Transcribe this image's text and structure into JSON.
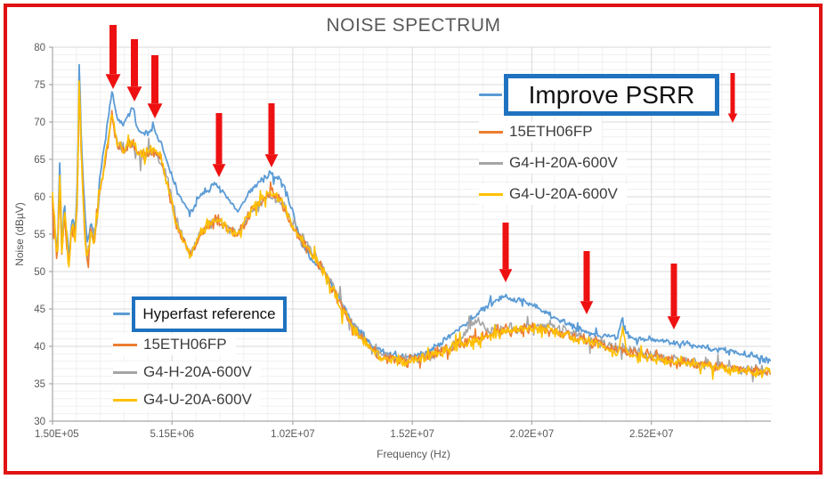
{
  "title": "NOISE SPECTRUM",
  "colors": {
    "frame_border": "#e01212",
    "callout_border": "#1f72c0",
    "arrow": "#ee1111",
    "title_text": "#595959",
    "axis_text": "#595959",
    "legend_text": "#3d3d3d",
    "grid_minor": "#f0f0f0",
    "grid_major": "#d9d9d9",
    "axis_line": "#a6a6a6"
  },
  "legend_top": {
    "callout_label": "Improve PSRR",
    "items": [
      "15ETH06FP",
      "G4-H-20A-600V",
      "G4-U-20A-600V"
    ]
  },
  "legend_bottom": {
    "callout_label": "Hyperfast reference",
    "items": [
      "15ETH06FP",
      "G4-H-20A-600V",
      "G4-U-20A-600V"
    ]
  },
  "annotations": {
    "arrow_color": "#ee1111",
    "arrows": [
      {
        "x": 127,
        "tail_y": 28,
        "tip_y": 100,
        "w": 8
      },
      {
        "x": 151,
        "tail_y": 44,
        "tip_y": 114,
        "w": 8
      },
      {
        "x": 174,
        "tail_y": 62,
        "tip_y": 133,
        "w": 8
      },
      {
        "x": 246,
        "tail_y": 127,
        "tip_y": 199,
        "w": 7
      },
      {
        "x": 305,
        "tail_y": 116,
        "tip_y": 188,
        "w": 7
      },
      {
        "x": 568,
        "tail_y": 250,
        "tip_y": 317,
        "w": 7
      },
      {
        "x": 659,
        "tail_y": 282,
        "tip_y": 353,
        "w": 7
      },
      {
        "x": 757,
        "tail_y": 296,
        "tip_y": 370,
        "w": 7
      },
      {
        "x": 823,
        "tail_y": 82,
        "tip_y": 138,
        "w": 5
      }
    ]
  },
  "chart_data": {
    "type": "line",
    "title": "NOISE SPECTRUM",
    "xlabel": "Frequency (Hz)",
    "ylabel": "Noise (dBµV)",
    "x_unit": "Hz",
    "xlim": [
      150000,
      30200000
    ],
    "ylim": [
      30,
      80
    ],
    "grid": "on",
    "yticks": [
      30,
      35,
      40,
      45,
      50,
      55,
      60,
      65,
      70,
      75,
      80
    ],
    "xticks": [
      {
        "hz": 150000,
        "label": "1.50E+05"
      },
      {
        "hz": 5150000,
        "label": "5.15E+06"
      },
      {
        "hz": 10200000,
        "label": "1.02E+07"
      },
      {
        "hz": 15200000,
        "label": "1.52E+07"
      },
      {
        "hz": 20200000,
        "label": "2.02E+07"
      },
      {
        "hz": 25200000,
        "label": "2.52E+07"
      }
    ],
    "series": [
      {
        "name": "Hyperfast reference",
        "alt_label": "Improve PSRR",
        "color": "#5b9bd5",
        "width": 1.8,
        "jitter": 0.5,
        "seed": 7,
        "points": [
          [
            150000,
            59
          ],
          [
            250000,
            56
          ],
          [
            350000,
            52
          ],
          [
            450000,
            64.5
          ],
          [
            550000,
            53
          ],
          [
            650000,
            59.5
          ],
          [
            750000,
            55
          ],
          [
            850000,
            52
          ],
          [
            950000,
            57.5
          ],
          [
            1100000,
            55
          ],
          [
            1200000,
            62
          ],
          [
            1260000,
            78
          ],
          [
            1350000,
            68
          ],
          [
            1450000,
            60
          ],
          [
            1600000,
            53.5
          ],
          [
            1750000,
            56.5
          ],
          [
            1900000,
            54
          ],
          [
            2100000,
            62
          ],
          [
            2350000,
            67.5
          ],
          [
            2630000,
            74
          ],
          [
            2850000,
            70.5
          ],
          [
            3100000,
            69.5
          ],
          [
            3500000,
            72
          ],
          [
            3750000,
            68.7
          ],
          [
            4100000,
            68.5
          ],
          [
            4370000,
            69.3
          ],
          [
            4700000,
            67
          ],
          [
            5000000,
            64
          ],
          [
            5400000,
            60.5
          ],
          [
            5900000,
            57.6
          ],
          [
            6400000,
            60.5
          ],
          [
            7000000,
            61.7
          ],
          [
            7500000,
            59.6
          ],
          [
            7900000,
            58
          ],
          [
            8400000,
            60.8
          ],
          [
            9200000,
            63
          ],
          [
            9700000,
            62.4
          ],
          [
            10100000,
            59
          ],
          [
            10600000,
            53.5
          ],
          [
            10900000,
            51.8
          ],
          [
            11500000,
            50
          ],
          [
            12200000,
            46
          ],
          [
            12700000,
            43.2
          ],
          [
            13500000,
            40
          ],
          [
            14200000,
            38.8
          ],
          [
            15000000,
            38.6
          ],
          [
            15700000,
            39
          ],
          [
            16400000,
            40.5
          ],
          [
            17200000,
            42.6
          ],
          [
            17800000,
            44
          ],
          [
            18300000,
            45.4
          ],
          [
            19000000,
            46.7
          ],
          [
            19800000,
            46.1
          ],
          [
            20500000,
            45
          ],
          [
            21300000,
            43.6
          ],
          [
            22300000,
            42.1
          ],
          [
            23100000,
            41.5
          ],
          [
            23800000,
            41.2
          ],
          [
            24000000,
            43.8
          ],
          [
            24200000,
            41.2
          ],
          [
            25200000,
            41
          ],
          [
            26100000,
            40.6
          ],
          [
            27200000,
            40
          ],
          [
            28300000,
            39.4
          ],
          [
            29400000,
            38.8
          ],
          [
            30200000,
            38
          ]
        ]
      },
      {
        "name": "G4-H-20A-600V",
        "color": "#a5a5a5",
        "width": 1.6,
        "jitter": 0.85,
        "seed": 29,
        "points": [
          [
            150000,
            60
          ],
          [
            250000,
            55
          ],
          [
            350000,
            51.5
          ],
          [
            450000,
            62.5
          ],
          [
            550000,
            52.5
          ],
          [
            650000,
            58
          ],
          [
            750000,
            54
          ],
          [
            850000,
            51
          ],
          [
            950000,
            56
          ],
          [
            1100000,
            54.5
          ],
          [
            1200000,
            60
          ],
          [
            1260000,
            75.5
          ],
          [
            1350000,
            66
          ],
          [
            1450000,
            58.5
          ],
          [
            1600000,
            51
          ],
          [
            1750000,
            55.5
          ],
          [
            1900000,
            54.5
          ],
          [
            2100000,
            60
          ],
          [
            2350000,
            64.5
          ],
          [
            2630000,
            71
          ],
          [
            2850000,
            67
          ],
          [
            3100000,
            66.5
          ],
          [
            3500000,
            67
          ],
          [
            3750000,
            65.5
          ],
          [
            4100000,
            65.8
          ],
          [
            4370000,
            66
          ],
          [
            4700000,
            65
          ],
          [
            5000000,
            61.5
          ],
          [
            5400000,
            56
          ],
          [
            5900000,
            52.5
          ],
          [
            6400000,
            55.5
          ],
          [
            7000000,
            57
          ],
          [
            7500000,
            55.8
          ],
          [
            7900000,
            55.2
          ],
          [
            8400000,
            57.8
          ],
          [
            9200000,
            60
          ],
          [
            9700000,
            59.4
          ],
          [
            10100000,
            56.8
          ],
          [
            10600000,
            54.5
          ],
          [
            11500000,
            50.5
          ],
          [
            12200000,
            46
          ],
          [
            12700000,
            43
          ],
          [
            13500000,
            39.6
          ],
          [
            14200000,
            38.4
          ],
          [
            15000000,
            38.3
          ],
          [
            15700000,
            38.6
          ],
          [
            16400000,
            39.4
          ],
          [
            17200000,
            40.6
          ],
          [
            17800000,
            43.6
          ],
          [
            18300000,
            42.3
          ],
          [
            19000000,
            42.3
          ],
          [
            19800000,
            42.4
          ],
          [
            20500000,
            42.8
          ],
          [
            21000000,
            43
          ],
          [
            21300000,
            42.4
          ],
          [
            22300000,
            41.2
          ],
          [
            23100000,
            40.4
          ],
          [
            24000000,
            39.8
          ],
          [
            25200000,
            38.8
          ],
          [
            26100000,
            38.2
          ],
          [
            27200000,
            37.7
          ],
          [
            28300000,
            37.2
          ],
          [
            29400000,
            36.9
          ],
          [
            30200000,
            36.6
          ]
        ]
      },
      {
        "name": "15ETH06FP",
        "color": "#ed7d31",
        "width": 1.6,
        "jitter": 0.85,
        "seed": 13,
        "points": [
          [
            150000,
            60
          ],
          [
            250000,
            55
          ],
          [
            350000,
            51
          ],
          [
            450000,
            63
          ],
          [
            550000,
            52
          ],
          [
            650000,
            58.5
          ],
          [
            750000,
            54
          ],
          [
            850000,
            50.5
          ],
          [
            950000,
            56.5
          ],
          [
            1100000,
            54
          ],
          [
            1200000,
            60
          ],
          [
            1260000,
            76
          ],
          [
            1350000,
            66
          ],
          [
            1450000,
            58
          ],
          [
            1600000,
            50
          ],
          [
            1750000,
            55.5
          ],
          [
            1900000,
            54.5
          ],
          [
            2100000,
            60
          ],
          [
            2350000,
            64.5
          ],
          [
            2630000,
            71
          ],
          [
            2850000,
            67
          ],
          [
            3100000,
            66.4
          ],
          [
            3500000,
            67.2
          ],
          [
            3750000,
            65.6
          ],
          [
            4100000,
            65.8
          ],
          [
            4370000,
            66.2
          ],
          [
            4700000,
            65
          ],
          [
            5000000,
            61
          ],
          [
            5400000,
            55.5
          ],
          [
            5900000,
            52.2
          ],
          [
            6400000,
            55.3
          ],
          [
            7000000,
            57.1
          ],
          [
            7500000,
            55.6
          ],
          [
            7900000,
            55
          ],
          [
            8400000,
            57.8
          ],
          [
            9200000,
            60.3
          ],
          [
            9700000,
            59.6
          ],
          [
            10100000,
            56.5
          ],
          [
            10600000,
            54
          ],
          [
            11500000,
            50
          ],
          [
            12200000,
            45.6
          ],
          [
            12700000,
            42.6
          ],
          [
            13500000,
            39.4
          ],
          [
            14200000,
            38.3
          ],
          [
            15000000,
            38.2
          ],
          [
            15700000,
            38.5
          ],
          [
            16400000,
            39.3
          ],
          [
            17200000,
            40.3
          ],
          [
            17800000,
            41
          ],
          [
            18300000,
            41.4
          ],
          [
            19000000,
            42
          ],
          [
            19800000,
            42.4
          ],
          [
            20500000,
            42.5
          ],
          [
            21300000,
            42
          ],
          [
            22300000,
            41
          ],
          [
            23100000,
            40.2
          ],
          [
            24000000,
            39.5
          ],
          [
            25200000,
            38.6
          ],
          [
            26100000,
            38.1
          ],
          [
            27200000,
            37.6
          ],
          [
            28300000,
            37.1
          ],
          [
            29400000,
            36.8
          ],
          [
            30200000,
            36.5
          ]
        ]
      },
      {
        "name": "G4-U-20A-600V",
        "color": "#ffc000",
        "width": 1.6,
        "jitter": 0.9,
        "seed": 41,
        "points": [
          [
            150000,
            60
          ],
          [
            250000,
            55
          ],
          [
            350000,
            51
          ],
          [
            450000,
            63.5
          ],
          [
            550000,
            52
          ],
          [
            650000,
            59
          ],
          [
            750000,
            54
          ],
          [
            850000,
            50.5
          ],
          [
            950000,
            56.5
          ],
          [
            1100000,
            54
          ],
          [
            1200000,
            61
          ],
          [
            1260000,
            76
          ],
          [
            1350000,
            66.5
          ],
          [
            1450000,
            58
          ],
          [
            1600000,
            51.5
          ],
          [
            1750000,
            55.5
          ],
          [
            1900000,
            54
          ],
          [
            2100000,
            60.5
          ],
          [
            2350000,
            65
          ],
          [
            2630000,
            71.5
          ],
          [
            2850000,
            67
          ],
          [
            3100000,
            66.5
          ],
          [
            3500000,
            67.3
          ],
          [
            3750000,
            65.7
          ],
          [
            4100000,
            66
          ],
          [
            4370000,
            66.3
          ],
          [
            4700000,
            65.2
          ],
          [
            5000000,
            61
          ],
          [
            5400000,
            55.5
          ],
          [
            5900000,
            52
          ],
          [
            6400000,
            55.5
          ],
          [
            7000000,
            57.2
          ],
          [
            7500000,
            55.7
          ],
          [
            7900000,
            55
          ],
          [
            8400000,
            58
          ],
          [
            9200000,
            60.5
          ],
          [
            9700000,
            59.8
          ],
          [
            10100000,
            56.5
          ],
          [
            10600000,
            54
          ],
          [
            11500000,
            50
          ],
          [
            12200000,
            45.5
          ],
          [
            12700000,
            42.5
          ],
          [
            13500000,
            39.3
          ],
          [
            14200000,
            38.2
          ],
          [
            15000000,
            38.1
          ],
          [
            15700000,
            38.4
          ],
          [
            16400000,
            39.2
          ],
          [
            17200000,
            40.2
          ],
          [
            17800000,
            40.9
          ],
          [
            18300000,
            41.3
          ],
          [
            19000000,
            41.9
          ],
          [
            19800000,
            42.3
          ],
          [
            20500000,
            42.4
          ],
          [
            21300000,
            41.9
          ],
          [
            22300000,
            40.9
          ],
          [
            23100000,
            40.1
          ],
          [
            23800000,
            38.9
          ],
          [
            24000000,
            42.5
          ],
          [
            24200000,
            38.9
          ],
          [
            25200000,
            38.4
          ],
          [
            26100000,
            38
          ],
          [
            27200000,
            37.5
          ],
          [
            28300000,
            37
          ],
          [
            29400000,
            36.6
          ],
          [
            30200000,
            36.4
          ]
        ]
      }
    ]
  }
}
